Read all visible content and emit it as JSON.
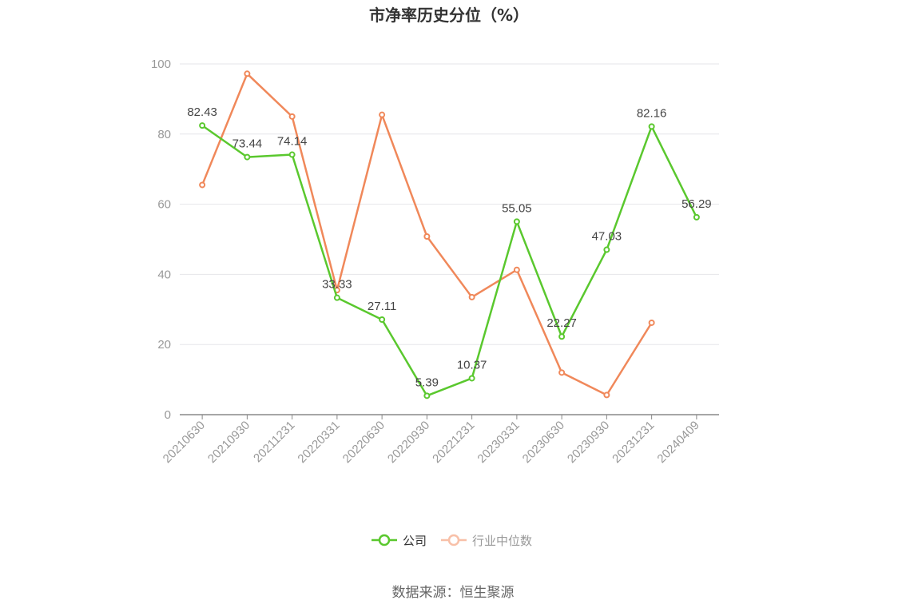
{
  "chart_data": {
    "type": "line",
    "title": "市净率历史分位（%）",
    "categories": [
      "20210630",
      "20210930",
      "20211231",
      "20220331",
      "20220630",
      "20220930",
      "20221231",
      "20230331",
      "20230630",
      "20230930",
      "20231231",
      "20240409"
    ],
    "ylim": [
      0,
      100
    ],
    "yticks": [
      0,
      20,
      40,
      60,
      80,
      100
    ],
    "grid": true,
    "legend_position": "bottom",
    "series": [
      {
        "name": "公司",
        "color": "#5ac82e",
        "values": [
          82.43,
          73.44,
          74.14,
          33.33,
          27.11,
          5.39,
          10.37,
          55.05,
          22.27,
          47.03,
          82.16,
          56.29
        ],
        "labels": [
          "82.43",
          "73.44",
          "74.14",
          "33.33",
          "27.11",
          "5.39",
          "10.37",
          "55.05",
          "22.27",
          "47.03",
          "82.16",
          "56.29"
        ]
      },
      {
        "name": "行业中位数",
        "color": "#f0885a",
        "values": [
          65.5,
          97.2,
          85.0,
          35.5,
          85.5,
          50.8,
          33.5,
          41.3,
          12.0,
          5.6,
          26.2,
          null
        ]
      }
    ],
    "source": "数据来源：恒生聚源"
  }
}
